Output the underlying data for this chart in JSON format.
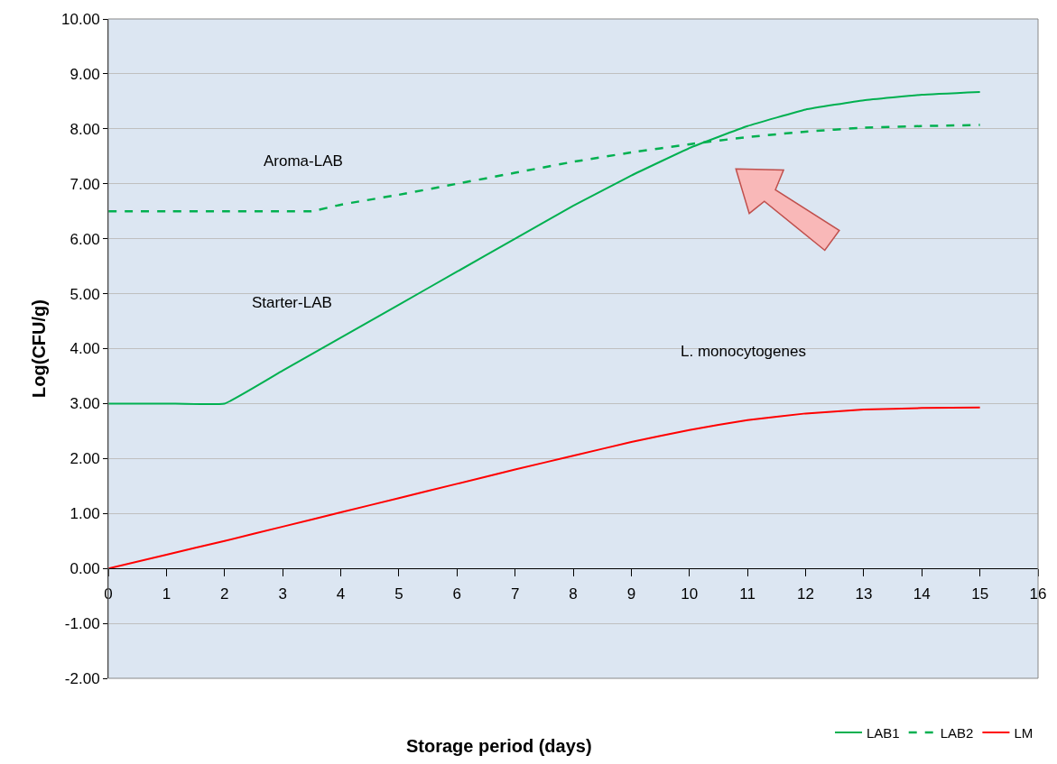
{
  "chart_data": {
    "type": "line",
    "xlabel": "Storage period (days)",
    "ylabel": "Log(CFU/g)",
    "x": [
      0,
      1,
      2,
      3,
      4,
      5,
      6,
      7,
      8,
      9,
      10,
      11,
      12,
      13,
      14,
      15
    ],
    "series": [
      {
        "name": "LAB1",
        "color": "#00b050",
        "line_style": "solid",
        "values": [
          3.0,
          3.0,
          3.0,
          3.6,
          4.2,
          4.8,
          5.4,
          6.0,
          6.6,
          7.15,
          7.65,
          8.05,
          8.35,
          8.52,
          8.62,
          8.67
        ]
      },
      {
        "name": "LAB2",
        "color": "#00b050",
        "line_style": "dashed",
        "x": [
          0,
          1,
          2,
          3,
          3.5,
          4,
          5,
          6,
          7,
          8,
          9,
          10,
          11,
          12,
          13,
          14,
          15
        ],
        "values": [
          6.5,
          6.5,
          6.5,
          6.5,
          6.5,
          6.62,
          6.8,
          7.0,
          7.2,
          7.4,
          7.57,
          7.72,
          7.85,
          7.95,
          8.02,
          8.05,
          8.07
        ]
      },
      {
        "name": "LM",
        "color": "#ff0000",
        "line_style": "solid",
        "values": [
          0,
          0.25,
          0.5,
          0.76,
          1.02,
          1.28,
          1.54,
          1.8,
          2.05,
          2.3,
          2.52,
          2.7,
          2.82,
          2.89,
          2.92,
          2.93
        ]
      }
    ],
    "xlim": [
      0,
      16
    ],
    "xticks": [
      0,
      1,
      2,
      3,
      4,
      5,
      6,
      7,
      8,
      9,
      10,
      11,
      12,
      13,
      14,
      15,
      16
    ],
    "ylim": [
      -2,
      10
    ],
    "yticks": [
      {
        "value": -2,
        "label": "-2.00"
      },
      {
        "value": -1,
        "label": "-1.00"
      },
      {
        "value": 0,
        "label": "0.00"
      },
      {
        "value": 1,
        "label": "1.00"
      },
      {
        "value": 2,
        "label": "2.00"
      },
      {
        "value": 3,
        "label": "3.00"
      },
      {
        "value": 4,
        "label": "4.00"
      },
      {
        "value": 5,
        "label": "5.00"
      },
      {
        "value": 6,
        "label": "6.00"
      },
      {
        "value": 7,
        "label": "7.00"
      },
      {
        "value": 8,
        "label": "8.00"
      },
      {
        "value": 9,
        "label": "9.00"
      },
      {
        "value": 10,
        "label": "10.00"
      }
    ],
    "grid": "y",
    "legend": "bottom right",
    "marker": "none",
    "annotations": [
      "Aroma-LAB",
      "Starter-LAB",
      "L. monocytogenes"
    ]
  }
}
